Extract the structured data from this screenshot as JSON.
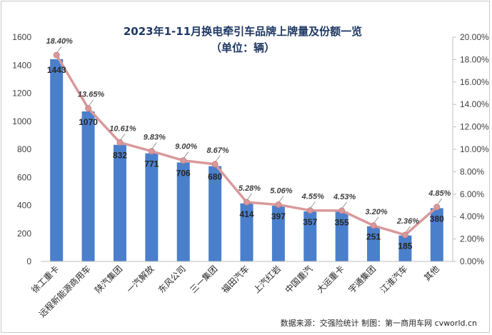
{
  "chart_data": {
    "type": "bar",
    "title": "2023年1-11月换电牵引车品牌上牌量及份额一览",
    "subtitle": "（单位：辆）",
    "categories": [
      "徐工重卡",
      "远程新能源商用车",
      "陕汽集团",
      "一汽解放",
      "东风公司",
      "三一集团",
      "福田汽车",
      "上汽红岩",
      "中国重汽",
      "大运重卡",
      "宇通集团",
      "江淮汽车",
      "其他"
    ],
    "series": [
      {
        "type": "bar",
        "axis": "left",
        "values": [
          1443,
          1070,
          832,
          771,
          706,
          680,
          414,
          397,
          357,
          355,
          251,
          185,
          380
        ],
        "labels": [
          "1443",
          "1070",
          "832",
          "771",
          "706",
          "680",
          "414",
          "397",
          "357",
          "355",
          "251",
          "185",
          "380"
        ],
        "color": "#4a7fcc"
      },
      {
        "type": "line",
        "axis": "right",
        "values": [
          18.4,
          13.65,
          10.61,
          9.83,
          9.0,
          8.67,
          5.28,
          5.06,
          4.55,
          4.53,
          3.2,
          2.36,
          4.85
        ],
        "labels": [
          "18.40%",
          "13.65%",
          "10.61%",
          "9.83%",
          "9.00%",
          "8.67%",
          "5.28%",
          "5.06%",
          "4.55%",
          "4.53%",
          "3.20%",
          "2.36%",
          "4.85%"
        ],
        "color": "#d9999b"
      }
    ],
    "ylim": [
      0,
      1600
    ],
    "yticks": [
      "0",
      "200",
      "400",
      "600",
      "800",
      "1000",
      "1200",
      "1400",
      "1600"
    ],
    "y2lim": [
      0,
      20
    ],
    "y2ticks": [
      "0.00%",
      "2.00%",
      "4.00%",
      "6.00%",
      "8.00%",
      "10.00%",
      "12.00%",
      "14.00%",
      "16.00%",
      "18.00%",
      "20.00%"
    ],
    "grid": false,
    "legend": "none",
    "source": "数据来源：交强险统计 制图：第一商用车网 cvworld.cn"
  }
}
